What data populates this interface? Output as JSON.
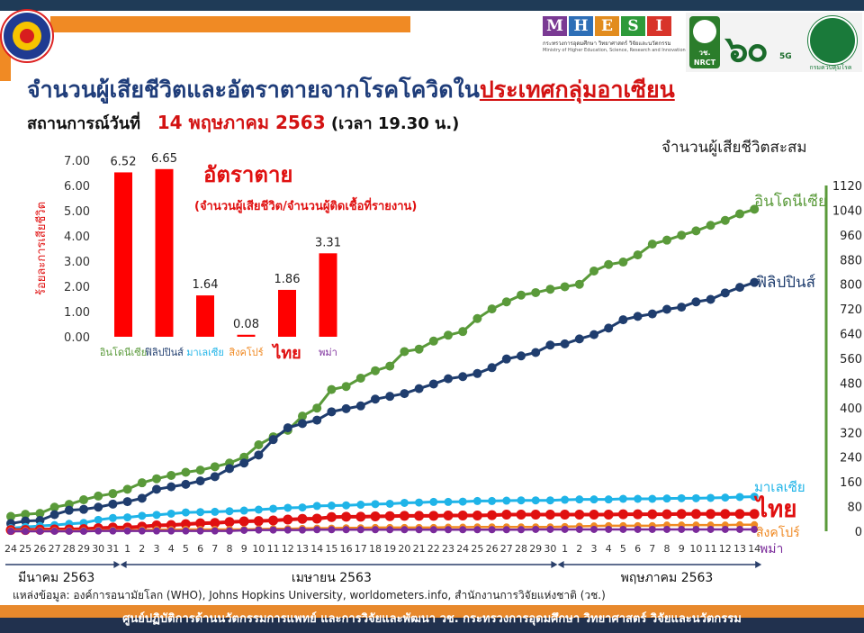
{
  "header": {
    "title_main": "จำนวนผู้เสียชีวิตและอัตราตายจากโรคโควิดใน",
    "title_highlight": "ประเทศกลุ่มอาเซียน",
    "subtitle_prefix": "สถานการณ์วันที่",
    "subtitle_date": "14 พฤษภาคม 2563",
    "subtitle_time": "(เวลา 19.30 น.)"
  },
  "logos": {
    "mhesi_letters": [
      "M",
      "H",
      "E",
      "S",
      "I"
    ],
    "mhesi_colors": [
      "#7a3a93",
      "#2e6fb7",
      "#e28c1e",
      "#2e9a3a",
      "#d8342a"
    ],
    "mhesi_line1": "กระทรวงการอุดมศึกษา วิทยาศาสตร์ วิจัยและนวัตกรรม",
    "mhesi_line2": "Ministry of Higher Education, Science, Research and Innovation",
    "nrct_text": "วช. NRCT",
    "anniv_text": "๖๐",
    "anniv_sub": "5G",
    "moph_text": "กรมควบคุมโรค"
  },
  "colors": {
    "indonesia": "#5a9a3a",
    "philippines": "#1f3d6e",
    "malaysia": "#1fb4e8",
    "thailand": "#e01010",
    "singapore": "#f08a24",
    "myanmar": "#7a2a9a",
    "bars": "#ff0000",
    "right_axis": "#5a9a3a"
  },
  "source": "แหล่งข้อมูล: องค์การอนามัยโลก (WHO), Johns Hopkins University, worldometers.info, สำนักงานการวิจัยแห่งชาติ (วช.)",
  "footer": "ศูนย์ปฏิบัติการด้านนวัตกรรมการแพทย์ และการวิจัยและพัฒนา วช.   กระทรวงการอุดมศึกษา วิทยาศาสตร์ วิจัยและนวัตกรรม",
  "chart_data": [
    {
      "type": "line",
      "title": "จำนวนผู้เสียชีวิตสะสม",
      "x": [
        "24",
        "25",
        "26",
        "27",
        "28",
        "29",
        "30",
        "31",
        "1",
        "2",
        "3",
        "4",
        "5",
        "6",
        "7",
        "8",
        "9",
        "10",
        "11",
        "12",
        "13",
        "14",
        "15",
        "16",
        "17",
        "18",
        "19",
        "20",
        "21",
        "22",
        "23",
        "24",
        "25",
        "26",
        "27",
        "28",
        "29",
        "30",
        "1",
        "2",
        "3",
        "4",
        "5",
        "6",
        "7",
        "8",
        "9",
        "10",
        "11",
        "12",
        "13",
        "14"
      ],
      "month_labels": [
        "มีนาคม 2563",
        "เมษายน 2563",
        "พฤษภาคม 2563"
      ],
      "ylim": [
        0,
        1120
      ],
      "yticks": [
        0,
        80,
        160,
        240,
        320,
        400,
        480,
        560,
        640,
        720,
        800,
        880,
        960,
        1040,
        1120
      ],
      "series": [
        {
          "name": "อินโดนีเซีย",
          "key": "indonesia",
          "values": [
            48,
            55,
            58,
            78,
            87,
            102,
            114,
            122,
            136,
            157,
            170,
            181,
            191,
            198,
            209,
            221,
            240,
            280,
            306,
            327,
            373,
            399,
            459,
            469,
            496,
            520,
            535,
            582,
            590,
            616,
            635,
            647,
            689,
            720,
            743,
            765,
            773,
            784,
            792,
            800,
            843,
            864,
            872,
            895,
            930,
            943,
            959,
            973,
            991,
            1007,
            1028,
            1043
          ]
        },
        {
          "name": "ฟิลิปปินส์",
          "key": "philippines",
          "values": [
            25,
            33,
            35,
            54,
            68,
            71,
            78,
            88,
            96,
            107,
            136,
            144,
            152,
            163,
            177,
            203,
            221,
            247,
            297,
            335,
            349,
            360,
            387,
            397,
            406,
            428,
            437,
            446,
            462,
            477,
            494,
            501,
            511,
            530,
            558,
            568,
            579,
            603,
            607,
            623,
            637,
            658,
            685,
            696,
            704,
            719,
            726,
            743,
            751,
            772,
            790,
            806
          ]
        },
        {
          "name": "มาเลเซีย",
          "key": "malaysia",
          "values": [
            10,
            14,
            17,
            20,
            24,
            27,
            37,
            43,
            45,
            50,
            53,
            57,
            61,
            62,
            63,
            65,
            67,
            70,
            73,
            76,
            77,
            82,
            83,
            84,
            86,
            88,
            89,
            92,
            93,
            95,
            95,
            96,
            98,
            98,
            99,
            100,
            100,
            100,
            102,
            103,
            103,
            103,
            105,
            105,
            105,
            106,
            107,
            107,
            108,
            109,
            111,
            112
          ]
        },
        {
          "name": "ไทย",
          "key": "thailand",
          "values": [
            4,
            4,
            5,
            6,
            6,
            7,
            10,
            12,
            12,
            15,
            19,
            20,
            23,
            26,
            27,
            30,
            32,
            33,
            35,
            38,
            40,
            41,
            46,
            47,
            47,
            48,
            49,
            50,
            50,
            50,
            51,
            51,
            51,
            52,
            54,
            54,
            54,
            54,
            54,
            54,
            54,
            54,
            55,
            55,
            55,
            55,
            56,
            56,
            56,
            56,
            56,
            56
          ]
        },
        {
          "name": "สิงคโปร์",
          "key": "singapore",
          "values": [
            2,
            2,
            2,
            2,
            2,
            2,
            3,
            3,
            3,
            4,
            5,
            5,
            6,
            6,
            6,
            6,
            6,
            7,
            8,
            8,
            9,
            10,
            10,
            11,
            11,
            12,
            12,
            12,
            12,
            12,
            13,
            13,
            14,
            14,
            14,
            14,
            14,
            14,
            15,
            16,
            17,
            18,
            18,
            18,
            18,
            20,
            20,
            20,
            20,
            20,
            21,
            21
          ]
        },
        {
          "name": "พม่า",
          "key": "myanmar",
          "values": [
            0,
            0,
            0,
            0,
            0,
            0,
            1,
            1,
            1,
            1,
            1,
            1,
            1,
            1,
            1,
            1,
            3,
            4,
            4,
            4,
            4,
            5,
            5,
            5,
            5,
            5,
            5,
            5,
            5,
            5,
            5,
            5,
            5,
            5,
            5,
            5,
            6,
            6,
            6,
            6,
            6,
            6,
            6,
            6,
            6,
            6,
            6,
            6,
            6,
            6,
            6,
            6
          ]
        }
      ]
    },
    {
      "type": "bar",
      "title": "อัตราตาย",
      "subtitle": "(จำนวนผู้เสียชีวิต/จำนวนผู้ติดเชื้อที่รายงาน)",
      "ylabel": "ร้อยละการเสียชีวิต",
      "ylim": [
        0,
        7
      ],
      "yticks": [
        "0.00",
        "1.00",
        "2.00",
        "3.00",
        "4.00",
        "5.00",
        "6.00",
        "7.00"
      ],
      "categories": [
        "อินโดนีเซีย",
        "ฟิลิปปินส์",
        "มาเลเซีย",
        "สิงคโปร์",
        "ไทย",
        "พม่า"
      ],
      "category_colors": [
        "#5a9a3a",
        "#1f3d6e",
        "#1fb4e8",
        "#f08a24",
        "#e01010",
        "#7a2a9a"
      ],
      "values": [
        6.52,
        6.65,
        1.64,
        0.08,
        1.86,
        3.31
      ],
      "value_labels": [
        "6.52",
        "6.65",
        "1.64",
        "0.08",
        "1.86",
        "3.31"
      ]
    }
  ]
}
